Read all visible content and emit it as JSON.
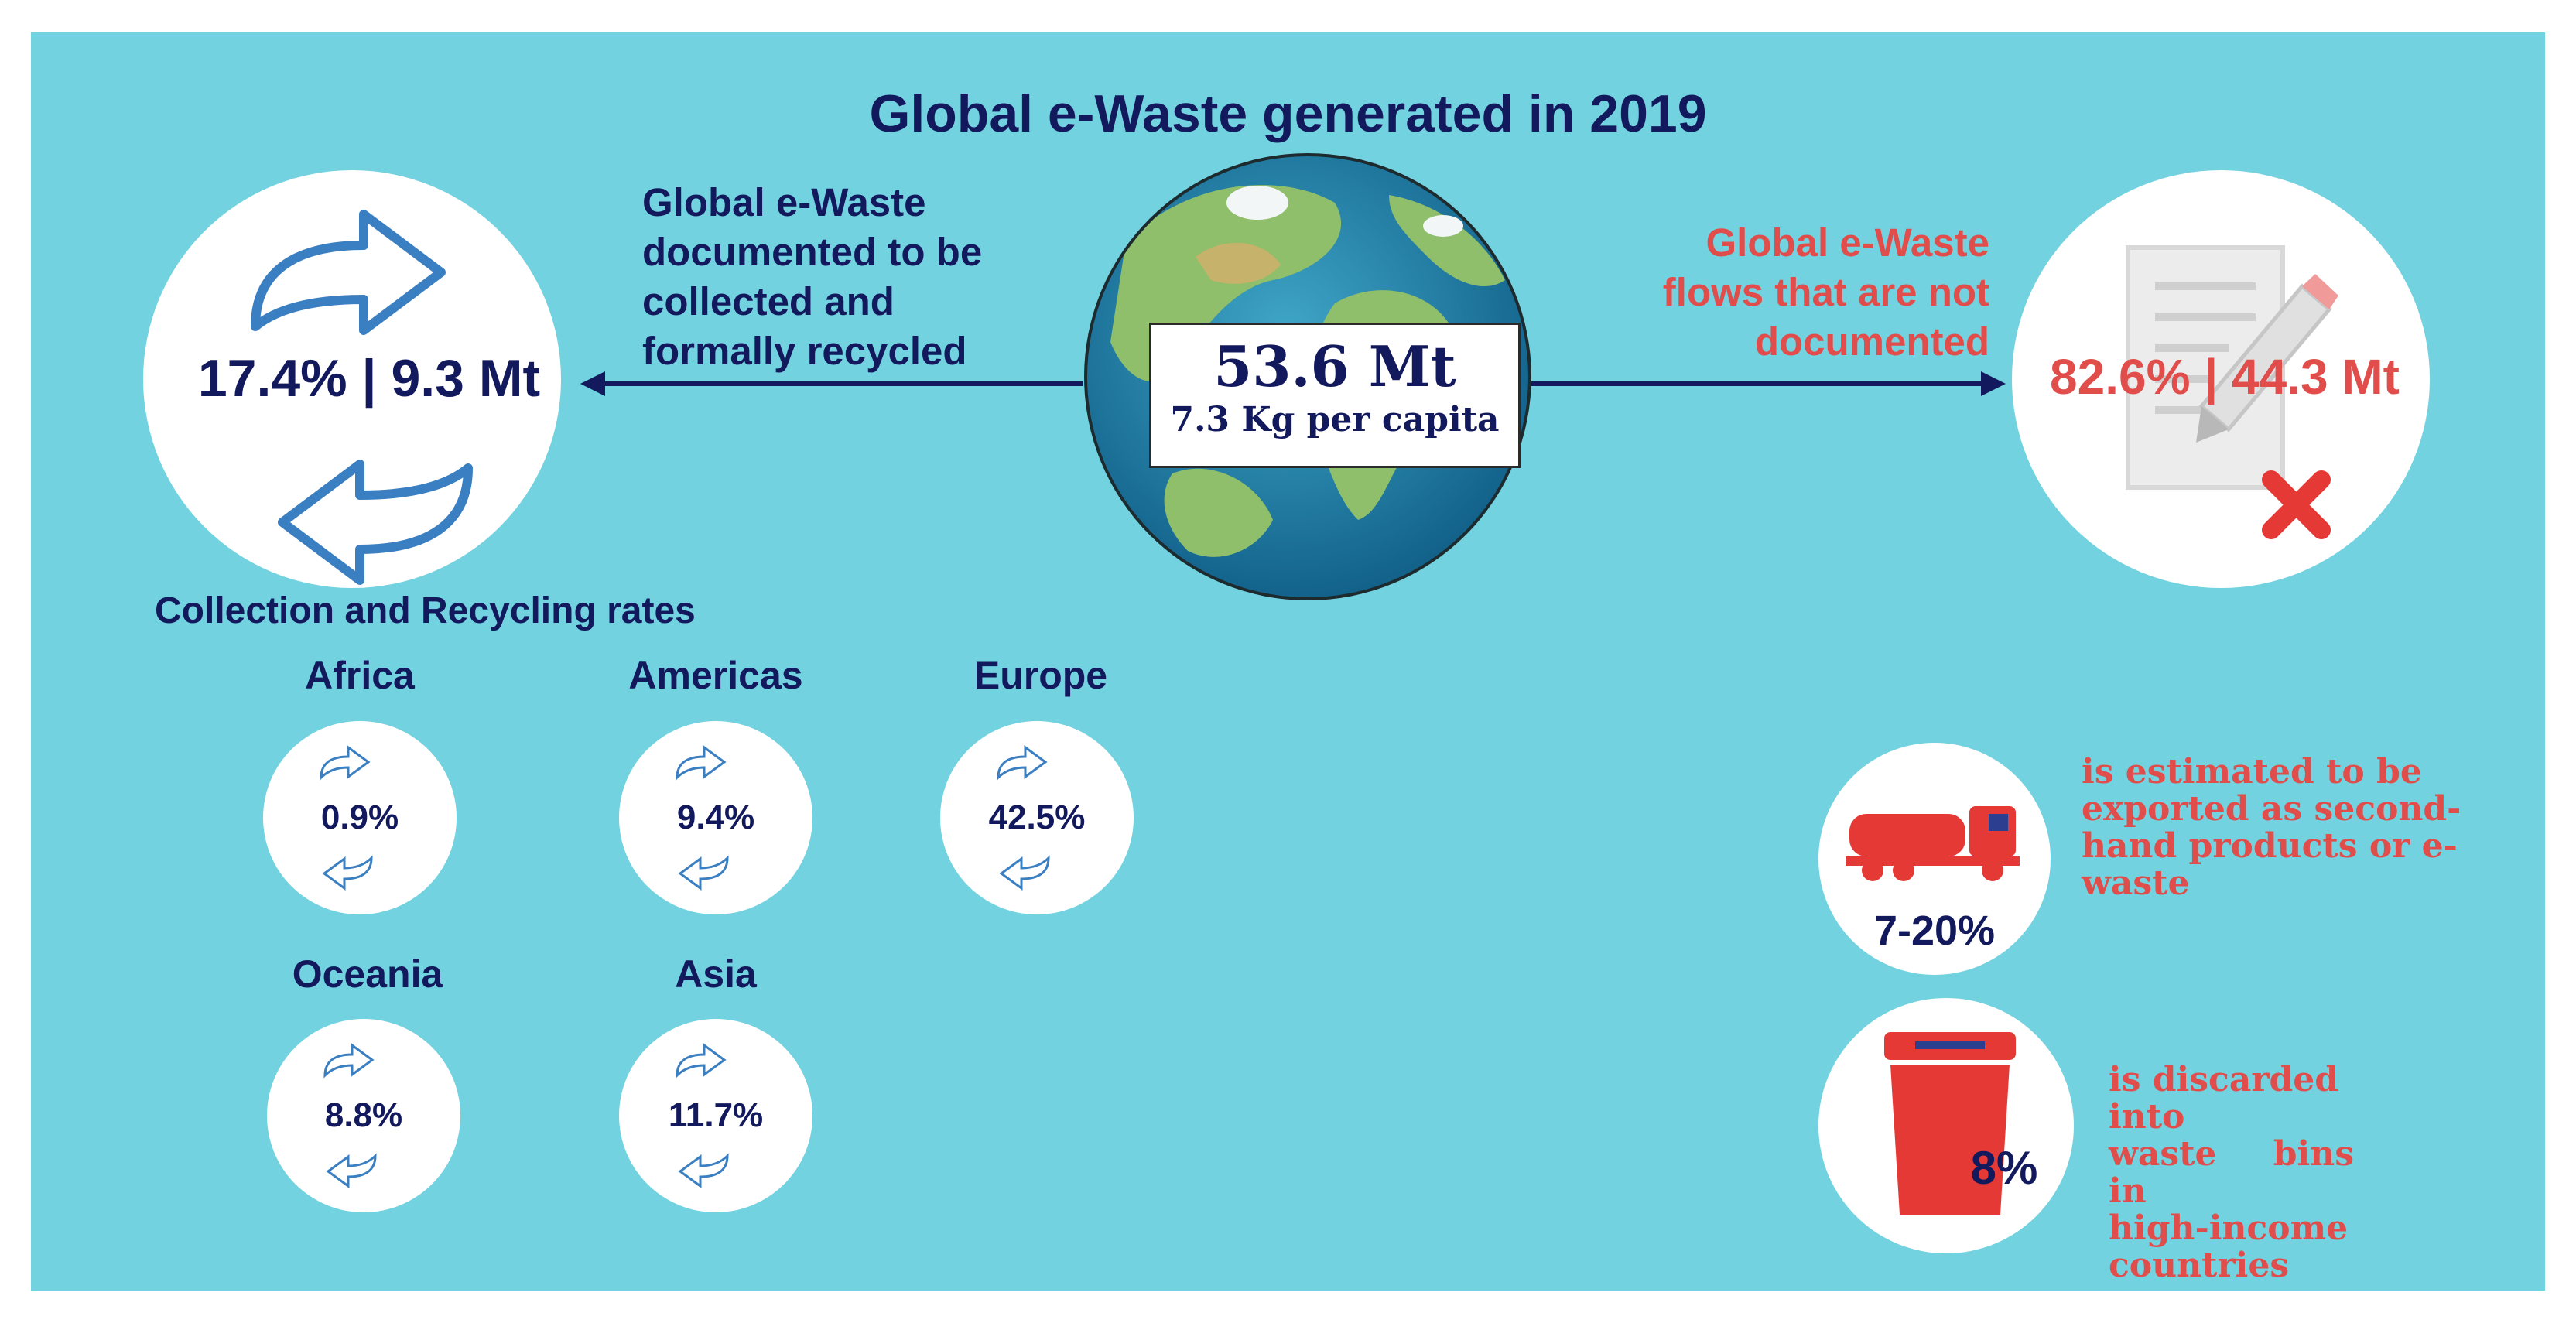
{
  "title": "Global e-Waste generated in 2019",
  "center": {
    "total": "53.6 Mt",
    "per_capita": "7.3 Kg per capita"
  },
  "left": {
    "description_lines": [
      "Global e-Waste",
      "documented to be",
      "collected and",
      "formally recycled"
    ],
    "stat": "17.4% | 9.3 Mt",
    "icon": "recycle-arrows-icon"
  },
  "right": {
    "description_lines": [
      "Global e-Waste",
      "flows that are not",
      "documented"
    ],
    "stat": "82.6% | 44.3 Mt",
    "icon": "document-x-icon"
  },
  "rates": {
    "heading": "Collection and Recycling rates",
    "regions": [
      {
        "name": "Africa",
        "value": "0.9%"
      },
      {
        "name": "Americas",
        "value": "9.4%"
      },
      {
        "name": "Europe",
        "value": "42.5%"
      },
      {
        "name": "Oceania",
        "value": "8.8%"
      },
      {
        "name": "Asia",
        "value": "11.7%"
      }
    ]
  },
  "exported": {
    "value": "7-20%",
    "description_lines": [
      "is estimated to be",
      "exported as second-",
      "hand products or e-",
      "waste"
    ],
    "icon": "truck-icon"
  },
  "discarded": {
    "value": "8%",
    "description_lines": [
      "is discarded into",
      "waste bins in",
      "high-income",
      "countries"
    ],
    "icon": "waste-bin-icon"
  },
  "colors": {
    "background": "#73d2e0",
    "navy": "#12195c",
    "red": "#e04d4b",
    "icon_blue": "#3a7fc1"
  }
}
